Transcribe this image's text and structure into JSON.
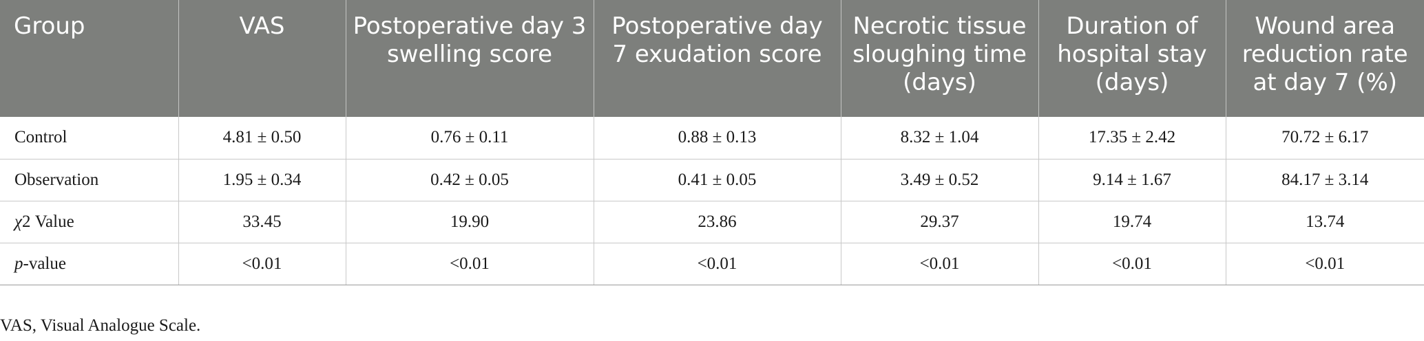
{
  "table": {
    "headers": [
      "Group",
      "VAS",
      "Postoperative day 3 swelling score",
      "Postoperative day 7 exudation score",
      "Necrotic tissue sloughing time (days)",
      "Duration of hospital stay (days)",
      "Wound area reduction rate at day 7 (%)"
    ],
    "rows": [
      {
        "label": "Control",
        "cells": [
          "4.81 ± 0.50",
          "0.76 ± 0.11",
          "0.88 ± 0.13",
          "8.32 ± 1.04",
          "17.35 ± 2.42",
          "70.72 ± 6.17"
        ]
      },
      {
        "label": "Observation",
        "cells": [
          "1.95 ± 0.34",
          "0.42 ± 0.05",
          "0.41 ± 0.05",
          "3.49 ± 0.52",
          "9.14 ± 1.67",
          "84.17 ± 3.14"
        ]
      },
      {
        "label_italic": "χ",
        "label_rest": "2 Value",
        "cells": [
          "33.45",
          "19.90",
          "23.86",
          "29.37",
          "19.74",
          "13.74"
        ]
      },
      {
        "label_italic": "p",
        "label_rest": "-value",
        "cells": [
          "<0.01",
          "<0.01",
          "<0.01",
          "<0.01",
          "<0.01",
          "<0.01"
        ]
      }
    ]
  },
  "footnote": "VAS, Visual Analogue Scale.",
  "colors": {
    "header_bg": "#7d7f7c",
    "header_text": "#ffffff",
    "body_text": "#1a1a1a",
    "grid": "#c8c8c8"
  }
}
